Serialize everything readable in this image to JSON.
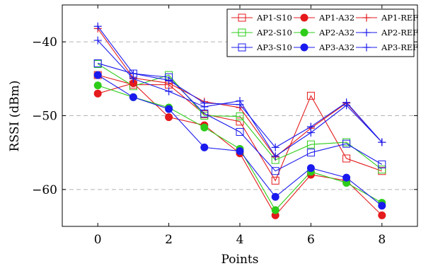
{
  "chart_data": {
    "type": "line",
    "xlabel": "Points",
    "ylabel": "RSSI (dBm)",
    "xlim": [
      -1,
      9
    ],
    "ylim": [
      -65,
      -35
    ],
    "xticks": [
      0,
      2,
      4,
      6,
      8
    ],
    "yticks": [
      -60,
      -50,
      -40
    ],
    "xtick_labels": [
      "0",
      "2",
      "4",
      "6",
      "8"
    ],
    "ytick_labels": [
      "−60",
      "−50",
      "−40"
    ],
    "grid": "horizontal-dashed",
    "legend_position": "top-right",
    "x": [
      0,
      1,
      2,
      3,
      4,
      5,
      6,
      7,
      8
    ],
    "series": [
      {
        "name": "AP1-S10",
        "color": "#e41a1c",
        "marker": "square",
        "values": [
          -44.5,
          -45.8,
          -45.8,
          -49.8,
          -50.8,
          -58.8,
          -47.3,
          -55.8,
          -57.5
        ]
      },
      {
        "name": "AP2-S10",
        "color": "#2ecc1a",
        "marker": "square",
        "values": [
          -43.0,
          -46.0,
          -44.5,
          -50.0,
          -50.1,
          -56.0,
          -53.9,
          -53.6,
          -57.3
        ]
      },
      {
        "name": "AP3-S10",
        "color": "#1a1aee",
        "marker": "square",
        "values": [
          -42.9,
          -44.3,
          -44.8,
          -49.7,
          -52.2,
          -57.5,
          -55.0,
          -53.8,
          -56.6
        ]
      },
      {
        "name": "AP1-A32",
        "color": "#e41a1c",
        "marker": "circle",
        "values": [
          -47.0,
          -45.6,
          -50.2,
          -51.3,
          -55.1,
          -63.5,
          -58.0,
          -58.8,
          -63.5
        ]
      },
      {
        "name": "AP2-A32",
        "color": "#2ecc1a",
        "marker": "circle",
        "values": [
          -45.9,
          -47.5,
          -48.9,
          -51.6,
          -54.5,
          -62.8,
          -57.6,
          -59.1,
          -61.8
        ]
      },
      {
        "name": "AP3-A32",
        "color": "#1a1aee",
        "marker": "circle",
        "values": [
          -44.5,
          -47.5,
          -49.1,
          -54.3,
          -54.8,
          -61.0,
          -57.1,
          -58.4,
          -62.2
        ]
      },
      {
        "name": "AP1-REF",
        "color": "#e41a1c",
        "marker": "plus",
        "values": [
          -38.2,
          -44.9,
          -45.6,
          -48.1,
          -48.9,
          -55.6,
          -51.7,
          -48.3,
          -53.6
        ]
      },
      {
        "name": "AP2-REF",
        "color": "#1a1aee",
        "marker": "plus",
        "values": [
          -39.8,
          -45.0,
          -46.7,
          -48.8,
          -48.0,
          -55.5,
          -52.3,
          -48.6,
          -53.6
        ]
      },
      {
        "name": "AP3-REF",
        "color": "#1a1aee",
        "marker": "plus",
        "values": [
          -37.9,
          -44.3,
          -45.2,
          -48.3,
          -48.5,
          -54.3,
          -51.5,
          -48.2,
          -53.6
        ]
      }
    ],
    "legend_order": [
      "AP1-S10",
      "AP1-A32",
      "AP1-REF",
      "AP2-S10",
      "AP2-A32",
      "AP2-REF",
      "AP3-S10",
      "AP3-A32",
      "AP3-REF"
    ]
  }
}
